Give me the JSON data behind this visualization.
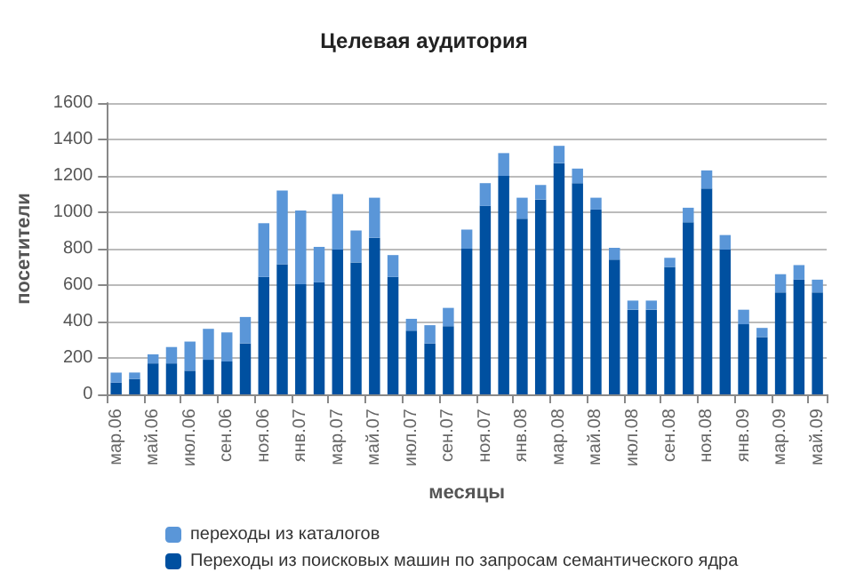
{
  "chart_data": {
    "type": "bar",
    "title": "Целевая аудитория",
    "xlabel": "месяцы",
    "ylabel": "посетители",
    "categories": [
      "мар.06",
      null,
      "май.06",
      null,
      "июл.06",
      null,
      "сен.06",
      null,
      "ноя.06",
      null,
      "янв.07",
      null,
      "мар.07",
      null,
      "май.07",
      null,
      "июл.07",
      null,
      "сен.07",
      null,
      "ноя.07",
      null,
      "янв.08",
      null,
      "мар.08",
      null,
      "май.08",
      null,
      "июл.08",
      null,
      "сен.08",
      null,
      "ноя.08",
      null,
      "янв.09",
      null,
      "мар.09",
      null,
      "май.09"
    ],
    "stacked": true,
    "series": [
      {
        "name": "Переходы из поисковых машин по запросам семантического ядра",
        "color": "#0050a0",
        "values": [
          65,
          85,
          170,
          170,
          130,
          190,
          180,
          280,
          645,
          715,
          605,
          615,
          795,
          725,
          860,
          645,
          350,
          280,
          375,
          800,
          1035,
          1200,
          965,
          1070,
          1270,
          1160,
          1015,
          740,
          465,
          465,
          700,
          945,
          1130,
          795,
          385,
          315,
          560,
          630,
          560
        ]
      },
      {
        "name": "переходы из каталогов",
        "color": "#5a96d8",
        "values": [
          55,
          35,
          50,
          90,
          160,
          170,
          160,
          145,
          295,
          405,
          405,
          195,
          305,
          175,
          220,
          120,
          65,
          100,
          100,
          105,
          125,
          125,
          115,
          80,
          95,
          80,
          65,
          65,
          50,
          50,
          50,
          80,
          100,
          80,
          80,
          50,
          100,
          80,
          70
        ]
      }
    ],
    "ylim": [
      0,
      1600
    ],
    "yticks": [
      0,
      200,
      400,
      600,
      800,
      1000,
      1200,
      1400,
      1600
    ],
    "grid": "y",
    "legend": "bottom"
  }
}
